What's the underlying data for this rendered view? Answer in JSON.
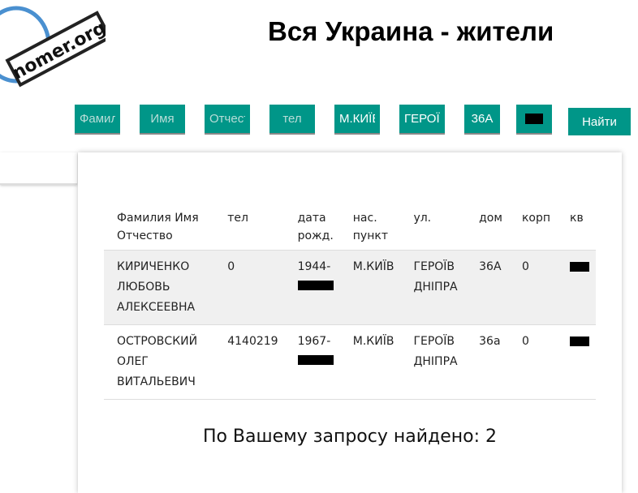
{
  "logo": {
    "text": "nomer.org"
  },
  "header": {
    "title": "Вся Украина - жители"
  },
  "search": {
    "fields": [
      {
        "placeholder": "Фамилия",
        "value": ""
      },
      {
        "placeholder": "Имя",
        "value": ""
      },
      {
        "placeholder": "Отчество",
        "value": ""
      },
      {
        "placeholder": "тел",
        "value": ""
      },
      {
        "placeholder": "",
        "value": "М.КИЇВ"
      },
      {
        "placeholder": "",
        "value": "ГЕРОЇВ"
      },
      {
        "placeholder": "",
        "value": "36А"
      },
      {
        "placeholder": "",
        "value": ""
      }
    ],
    "button": "Найти",
    "accent": "#009688"
  },
  "table": {
    "headers": [
      "Фамилия Имя Отчество",
      "тел",
      "дата рожд.",
      "нас. пункт",
      "ул.",
      "дом",
      "корп",
      "кв"
    ],
    "rows": [
      {
        "name": "КИРИЧЕНКО ЛЮБОВЬ АЛЕКСЕЕВНА",
        "tel": "0",
        "dob": "1944-",
        "city": "М.КИЇВ",
        "street": "ГЕРОЇВ ДНІПРА",
        "house": "36А",
        "korp": "0"
      },
      {
        "name": "ОСТРОВСКИЙ ОЛЕГ ВИТАЛЬЕВИЧ",
        "tel": "4140219",
        "dob": "1967-",
        "city": "М.КИЇВ",
        "street": "ГЕРОЇВ ДНІПРА",
        "house": "36а",
        "korp": "0"
      }
    ]
  },
  "result": "По Вашему запросу найдено: 2"
}
